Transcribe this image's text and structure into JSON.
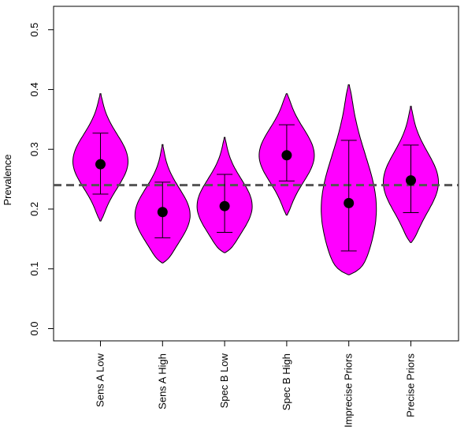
{
  "chart_data": {
    "type": "violin",
    "title": "",
    "xlabel": "",
    "ylabel": "Prevalence",
    "ylim": [
      0.0,
      0.5
    ],
    "yticks": [
      "0.0",
      "0.1",
      "0.2",
      "0.3",
      "0.4",
      "0.5"
    ],
    "reference_line": 0.24,
    "categories": [
      "Sens A Low",
      "Sens A High",
      "Spec B Low",
      "Spec B High",
      "Imprecise Priors",
      "Precise Priors"
    ],
    "series": [
      {
        "category": "Sens A Low",
        "median": 0.275,
        "ci_low": 0.225,
        "ci_high": 0.327,
        "min": 0.18,
        "max": 0.393,
        "mode": 0.28,
        "spread": 0.045
      },
      {
        "category": "Sens A High",
        "median": 0.195,
        "ci_low": 0.152,
        "ci_high": 0.245,
        "min": 0.11,
        "max": 0.308,
        "mode": 0.19,
        "spread": 0.045
      },
      {
        "category": "Spec B Low",
        "median": 0.205,
        "ci_low": 0.161,
        "ci_high": 0.258,
        "min": 0.127,
        "max": 0.32,
        "mode": 0.205,
        "spread": 0.045
      },
      {
        "category": "Spec B High",
        "median": 0.29,
        "ci_low": 0.247,
        "ci_high": 0.341,
        "min": 0.19,
        "max": 0.393,
        "mode": 0.29,
        "spread": 0.045
      },
      {
        "category": "Imprecise Priors",
        "median": 0.21,
        "ci_low": 0.13,
        "ci_high": 0.315,
        "min": 0.09,
        "max": 0.408,
        "mode": 0.2,
        "spread": 0.09
      },
      {
        "category": "Precise Priors",
        "median": 0.248,
        "ci_low": 0.194,
        "ci_high": 0.307,
        "min": 0.144,
        "max": 0.372,
        "mode": 0.245,
        "spread": 0.05
      }
    ],
    "colors": {
      "fill": "#ff00ff",
      "outline": "#000000",
      "reference": "#555555",
      "point": "#000000"
    },
    "grid": false,
    "legend": "none"
  }
}
